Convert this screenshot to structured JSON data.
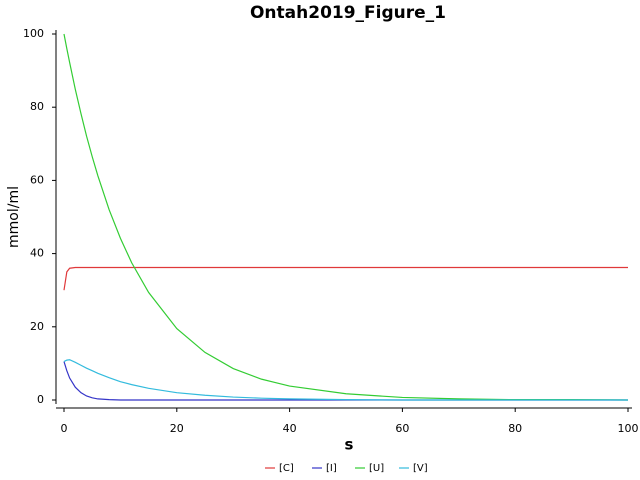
{
  "chart_data": {
    "type": "line",
    "title": "Ontah2019_Figure_1",
    "x_label": "s",
    "y_label": "mmol/ml",
    "x": [
      0,
      0.5,
      1,
      2,
      3,
      4,
      5,
      6,
      8,
      10,
      12,
      15,
      20,
      25,
      30,
      35,
      40,
      50,
      60,
      70,
      80,
      90,
      100
    ],
    "series": [
      {
        "name": "[C]",
        "color": "#e0383a",
        "values": [
          30,
          35,
          36,
          36.2,
          36.2,
          36.2,
          36.2,
          36.2,
          36.2,
          36.2,
          36.2,
          36.2,
          36.2,
          36.2,
          36.2,
          36.2,
          36.2,
          36.2,
          36.2,
          36.2,
          36.2,
          36.2,
          36.2
        ]
      },
      {
        "name": "[I]",
        "color": "#3535c8",
        "values": [
          10.5,
          8,
          6,
          3.5,
          2,
          1.1,
          0.6,
          0.3,
          0.1,
          0,
          0,
          0,
          0,
          0,
          0,
          0,
          0,
          0,
          0,
          0,
          0,
          0,
          0
        ]
      },
      {
        "name": "[U]",
        "color": "#33cc33",
        "values": [
          100,
          96.0,
          92.2,
          84.9,
          78.3,
          72.1,
          66.5,
          61.3,
          52.0,
          44.2,
          37.5,
          29.4,
          19.5,
          13.0,
          8.6,
          5.7,
          3.8,
          1.7,
          0.7,
          0.3,
          0.1,
          0.1,
          0
        ]
      },
      {
        "name": "[V]",
        "color": "#33bbdd",
        "values": [
          10.5,
          10.9,
          11,
          10.3,
          9.5,
          8.7,
          8,
          7.3,
          6.1,
          5,
          4.2,
          3.2,
          2,
          1.3,
          0.8,
          0.5,
          0.3,
          0.1,
          0,
          0,
          0,
          0,
          0
        ]
      }
    ],
    "xlim": [
      0,
      100
    ],
    "xticks": [
      0,
      20,
      40,
      60,
      80,
      100
    ],
    "ylim": [
      0,
      100
    ],
    "yticks": [
      0,
      20,
      40,
      60,
      80,
      100
    ],
    "legend": "bottom"
  }
}
